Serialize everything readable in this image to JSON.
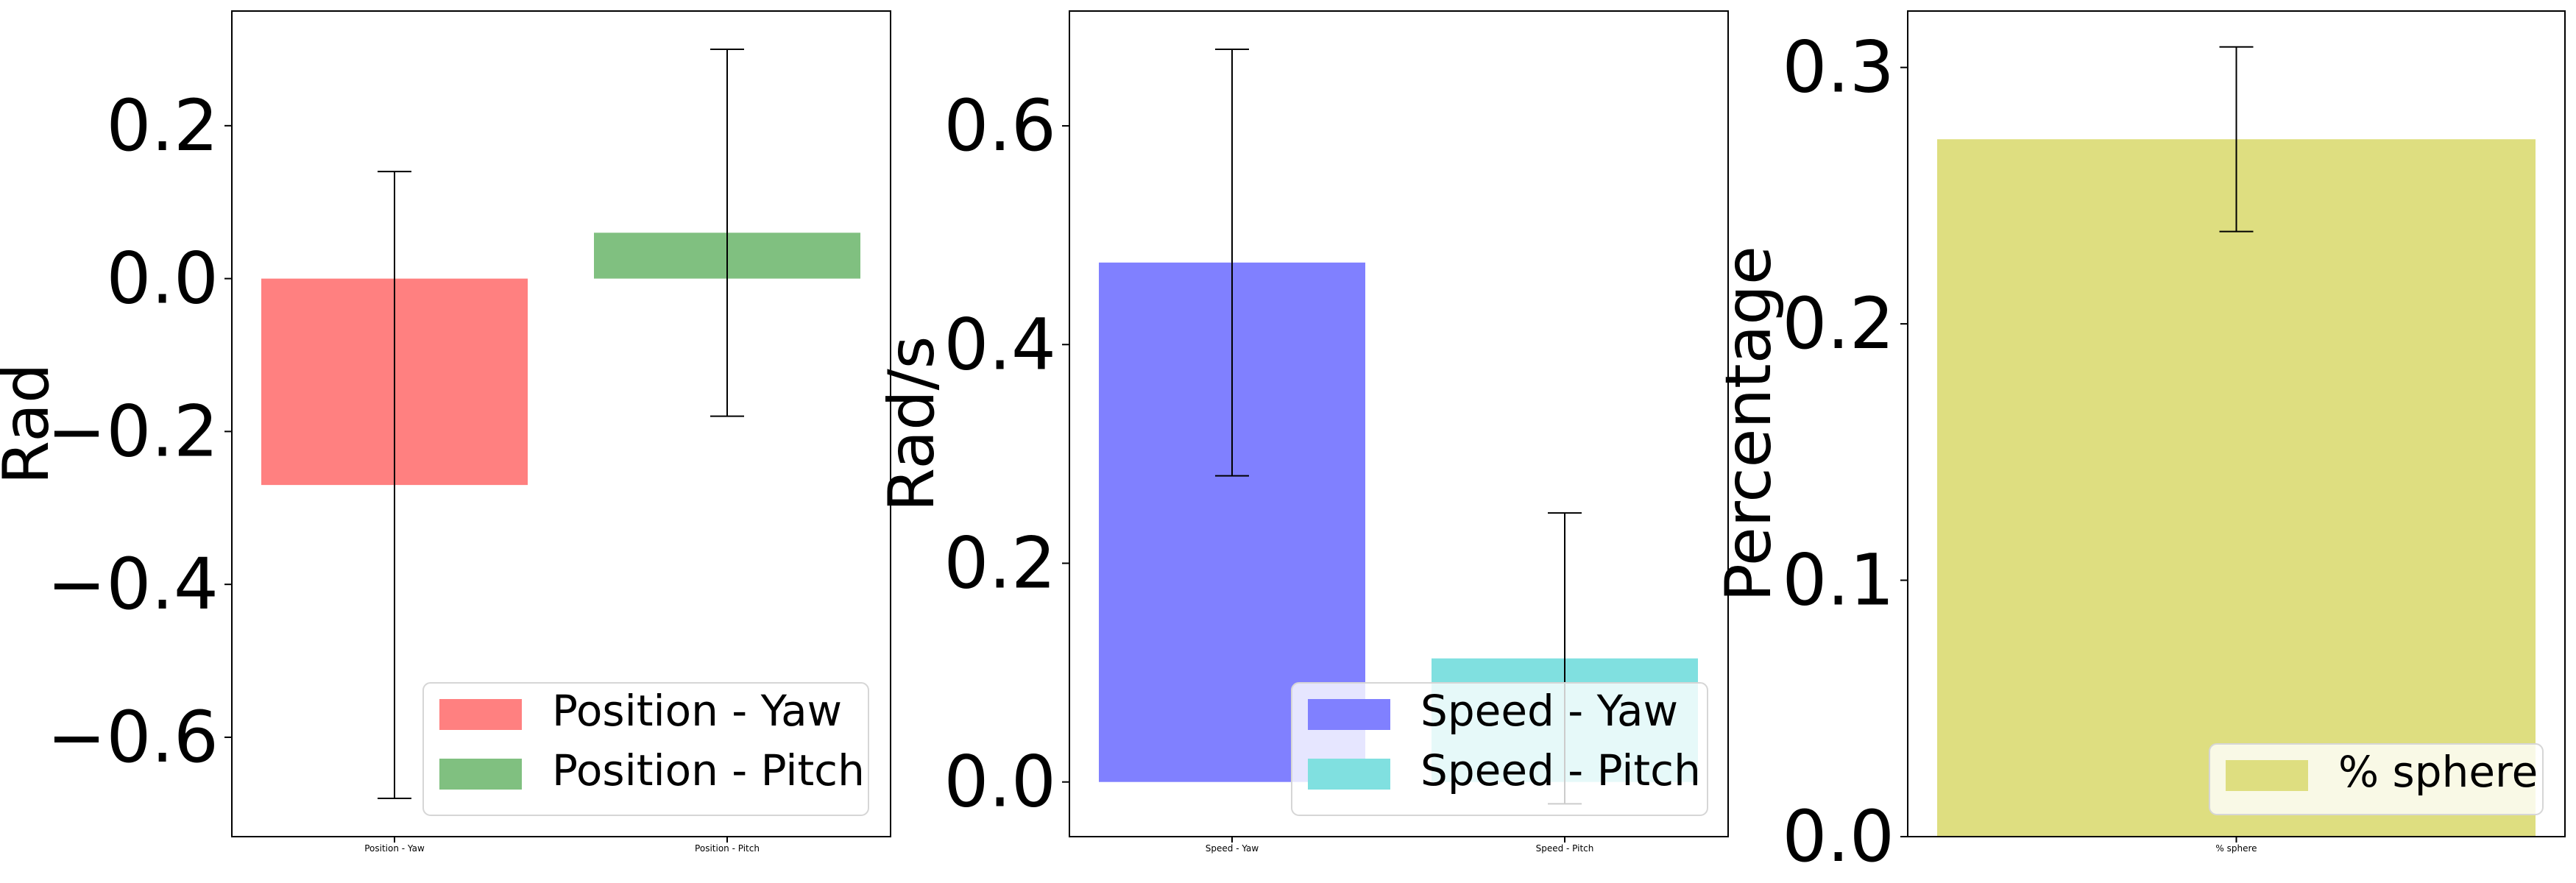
{
  "chart_data": [
    {
      "type": "bar",
      "categories": [
        "Position - Yaw",
        "Position - Pitch"
      ],
      "values": [
        -0.27,
        0.06
      ],
      "errors": [
        0.41,
        0.24
      ],
      "colors": [
        "#ff8080",
        "#80c080"
      ],
      "ylabel": "Rad",
      "ylim": [
        -0.73,
        0.35
      ],
      "yticks": [
        -0.6,
        -0.4,
        -0.2,
        0.0,
        0.2
      ],
      "ytick_labels": [
        "−0.6",
        "−0.4",
        "−0.2",
        "0.0",
        "0.2"
      ],
      "legend": [
        "Position - Yaw",
        "Position - Pitch"
      ],
      "legend_position": "lower-right",
      "grid": false
    },
    {
      "type": "bar",
      "categories": [
        "Speed - Yaw",
        "Speed - Pitch"
      ],
      "values": [
        0.475,
        0.113
      ],
      "errors": [
        0.195,
        0.133
      ],
      "colors": [
        "#8080ff",
        "#80e0e0"
      ],
      "ylabel": "Rad/s",
      "ylim": [
        -0.05,
        0.705
      ],
      "yticks": [
        0.0,
        0.2,
        0.4,
        0.6
      ],
      "ytick_labels": [
        "0.0",
        "0.2",
        "0.4",
        "0.6"
      ],
      "legend": [
        "Speed - Yaw",
        "Speed - Pitch"
      ],
      "legend_position": "lower-right",
      "grid": false
    },
    {
      "type": "bar",
      "categories": [
        "% sphere"
      ],
      "values": [
        0.272
      ],
      "errors": [
        0.036
      ],
      "colors": [
        "#dede80"
      ],
      "ylabel": "Percentage",
      "ylim": [
        0.0,
        0.322
      ],
      "yticks": [
        0.0,
        0.1,
        0.2,
        0.3
      ],
      "ytick_labels": [
        "0.0",
        "0.1",
        "0.2",
        "0.3"
      ],
      "legend": [
        "% sphere"
      ],
      "legend_position": "lower-right",
      "grid": false
    }
  ]
}
